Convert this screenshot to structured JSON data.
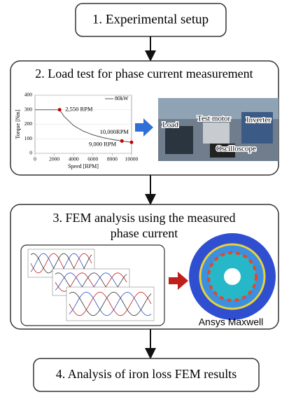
{
  "steps": [
    {
      "label": "1. Experimental setup"
    },
    {
      "label": "2. Load test for phase  current measurement"
    },
    {
      "label": [
        "3. FEM analysis using the measured",
        "phase current"
      ]
    },
    {
      "label": "4. Analysis of iron loss FEM results"
    }
  ],
  "torque_chart": {
    "ylabel": "Torque [Nm]",
    "xlabel": "Speed [RPM]",
    "legend": "80kW",
    "xlim": [
      0,
      10000
    ],
    "xticks": [
      0,
      2000,
      4000,
      6000,
      8000,
      10000
    ],
    "ylim": [
      0,
      400
    ],
    "yticks": [
      0,
      100,
      200,
      300,
      400
    ],
    "curve": {
      "x": [
        0,
        2550,
        3000,
        4000,
        5000,
        6000,
        7000,
        8000,
        9000,
        10000
      ],
      "y": [
        300,
        300,
        255,
        191,
        153,
        127,
        109,
        95,
        85,
        76
      ]
    },
    "points": [
      {
        "label": "2,550 RPM",
        "x": 2550,
        "y": 300
      },
      {
        "label": "10,000RPM",
        "x": 10000,
        "y": 76
      },
      {
        "label": "9,000 RPM",
        "x": 9000,
        "y": 85
      }
    ]
  },
  "photo_labels": [
    "Load",
    "Test motor",
    "Inverter",
    "Oscilloscope"
  ],
  "fem_label": "Ansys Maxwell"
}
